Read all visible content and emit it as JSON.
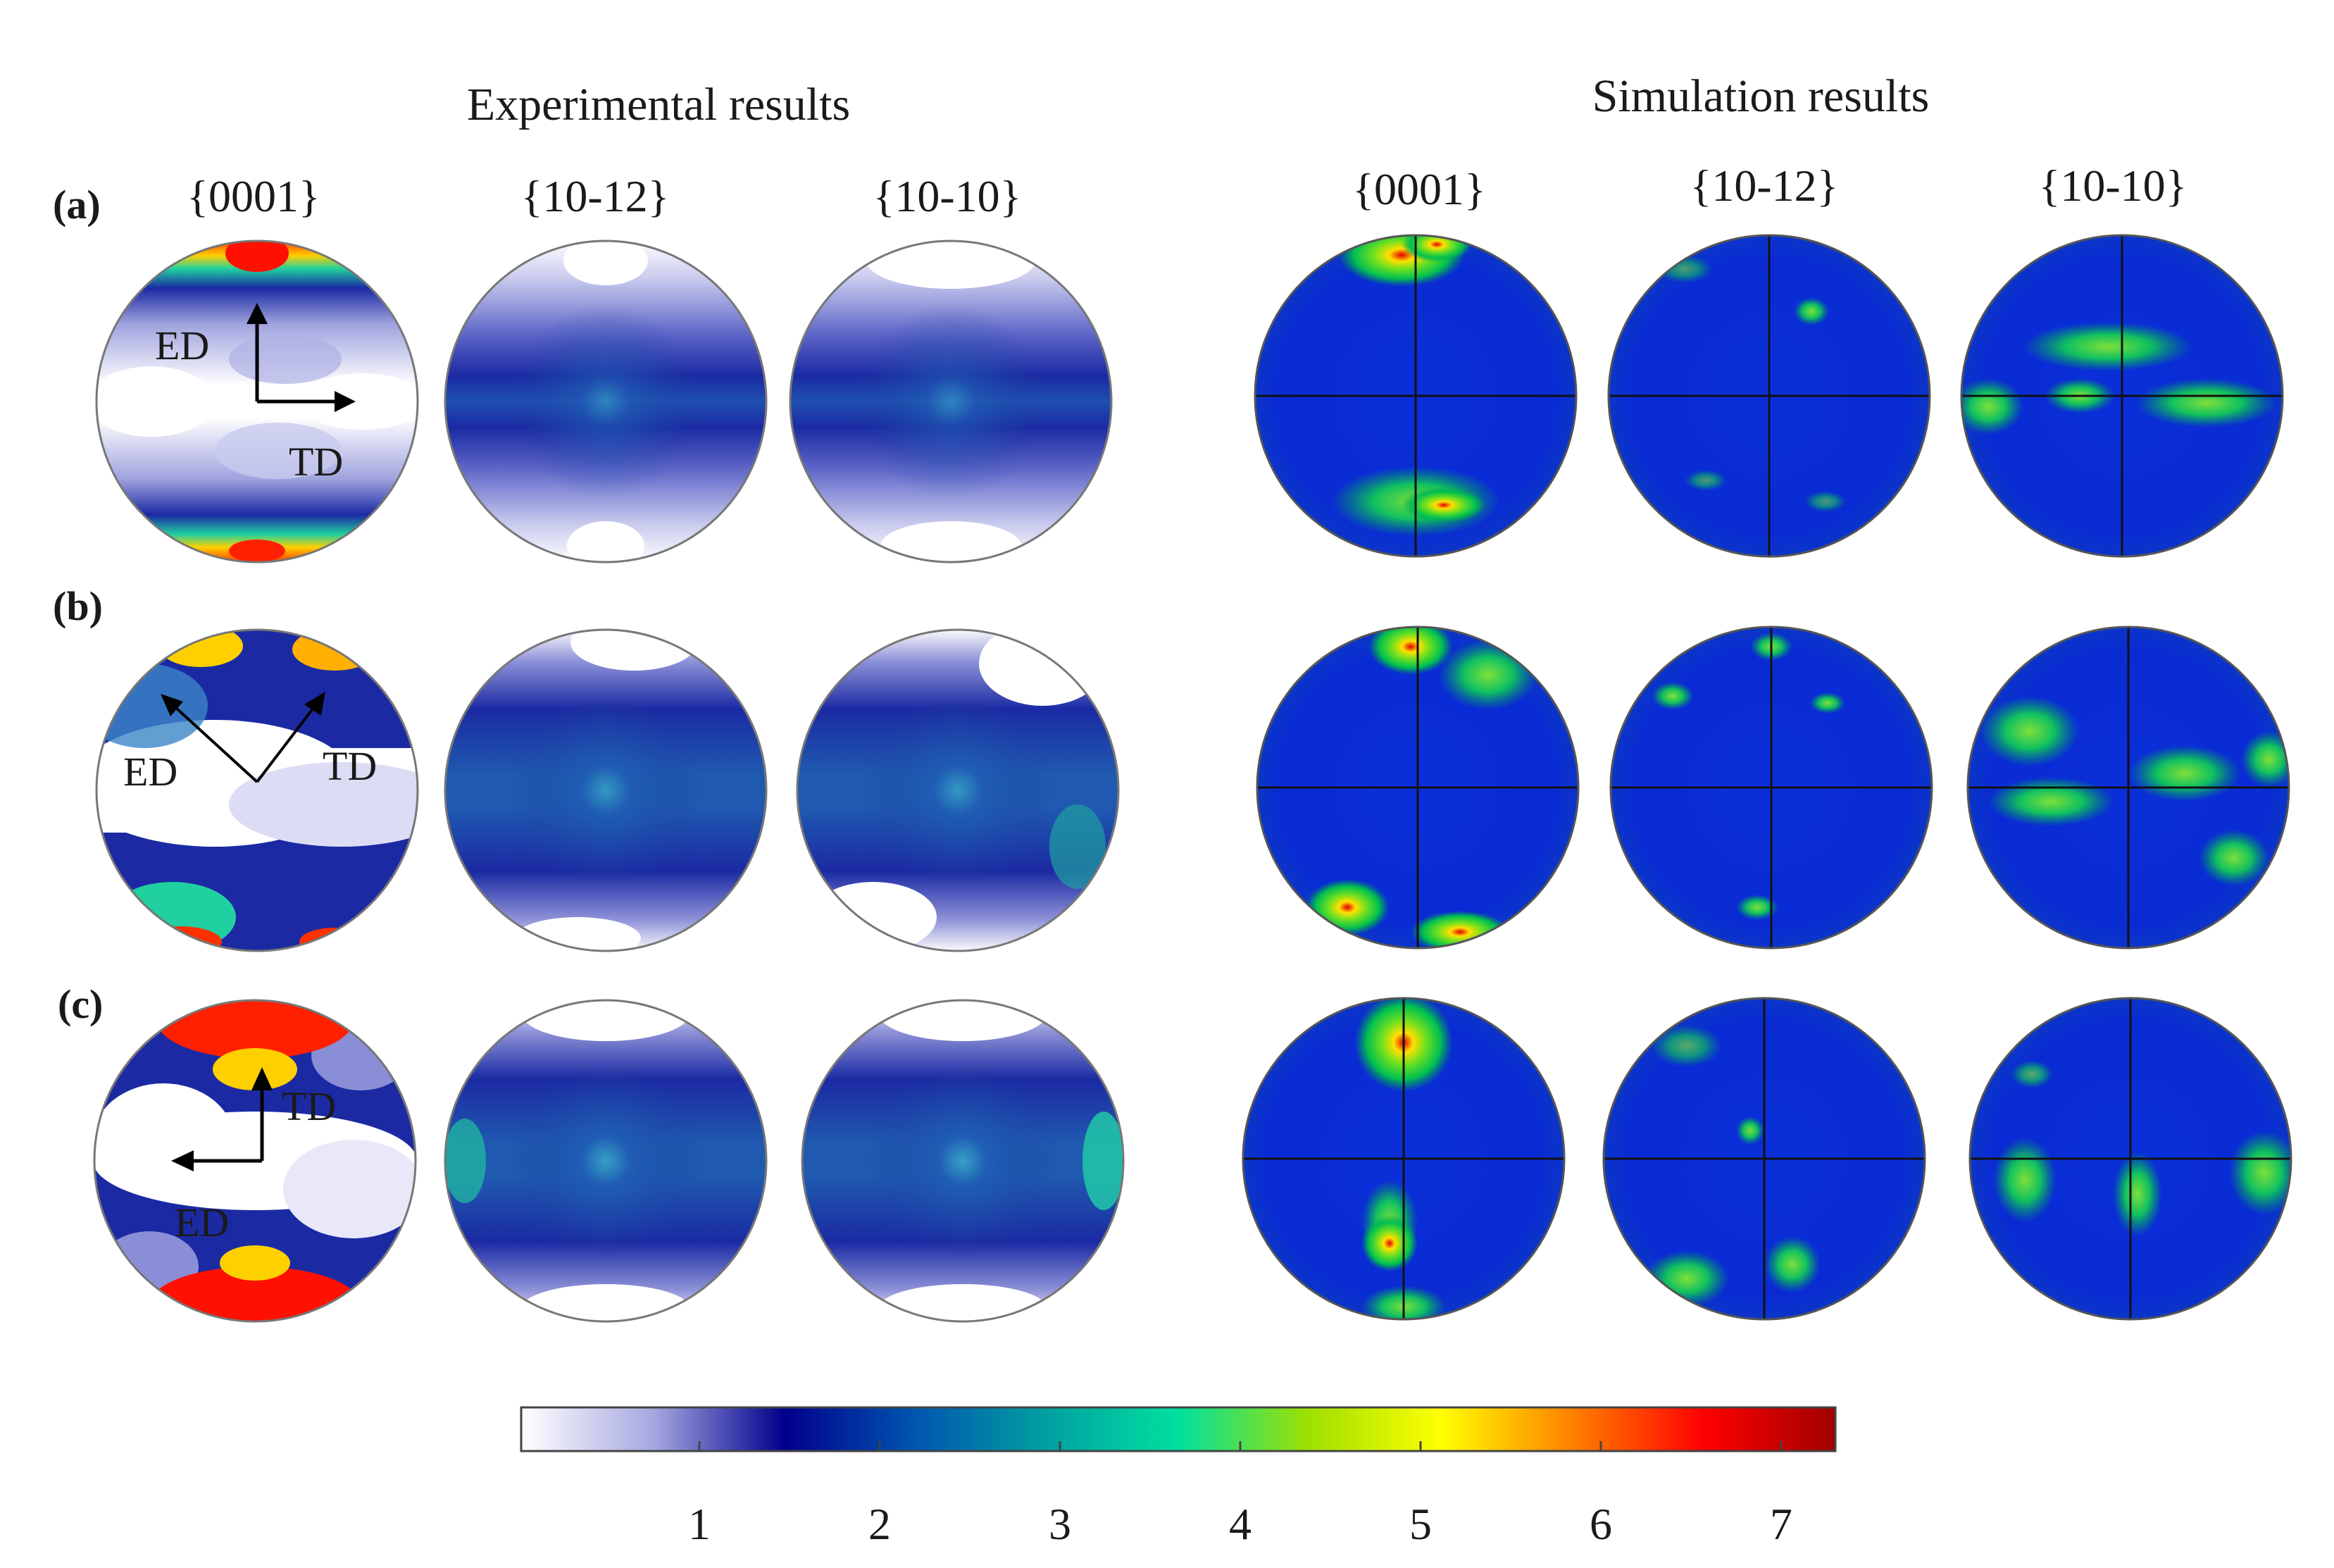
{
  "titles": {
    "experimental": "Experimental results",
    "simulation": "Simulation results"
  },
  "planes": [
    "{0001}",
    "{10-12}",
    "{10-10}"
  ],
  "rows": [
    {
      "label": "(a)",
      "ed": "ED",
      "td": "TD"
    },
    {
      "label": "(b)",
      "ed": "ED",
      "td": "TD"
    },
    {
      "label": "(c)",
      "ed": "ED",
      "td": "TD"
    }
  ],
  "colorbar": {
    "ticks": [
      "1",
      "2",
      "3",
      "4",
      "5",
      "6",
      "7"
    ],
    "colors": [
      "#ffffff",
      "#a6a8e0",
      "#00008b",
      "#0055b0",
      "#00a0a0",
      "#00e0a0",
      "#9fe000",
      "#ffff00",
      "#ff8000",
      "#ff0000",
      "#a00000"
    ]
  }
}
